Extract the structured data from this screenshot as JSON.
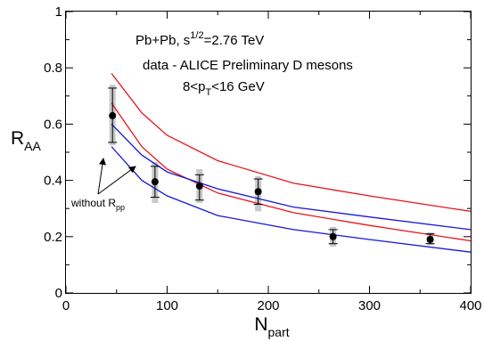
{
  "chart_data": {
    "type": "line",
    "title": "",
    "xlabel": {
      "main": "N",
      "sub": "part"
    },
    "ylabel": {
      "main": "R",
      "sub": "AA"
    },
    "xlim": [
      0,
      400
    ],
    "ylim": [
      0,
      1
    ],
    "x_ticks": [
      0,
      100,
      200,
      300,
      400
    ],
    "y_ticks": [
      0,
      0.2,
      0.4,
      0.6,
      0.8,
      1
    ],
    "x_tick_labels": [
      "0",
      "100",
      "200",
      "300",
      "400"
    ],
    "y_tick_labels": [
      "0",
      "0.2",
      "0.4",
      "0.6",
      "0.8",
      "1"
    ],
    "grid": false,
    "annotations": {
      "line1": {
        "pre": "Pb+Pb, s",
        "sup": "1/2",
        "post": "=2.76 TeV"
      },
      "line2": "data - ALICE Preliminary D mesons",
      "line3": {
        "pre": "8<p",
        "sub": "T",
        "post": "<16 GeV"
      },
      "arrow_label": {
        "pre": "without R",
        "sub": "pp"
      }
    },
    "series": [
      {
        "color": "#e8141b",
        "x": [
          45,
          75,
          100,
          150,
          225,
          300,
          400
        ],
        "y": [
          0.78,
          0.64,
          0.56,
          0.47,
          0.39,
          0.345,
          0.29
        ]
      },
      {
        "color": "#e8141b",
        "x": [
          45,
          75,
          100,
          150,
          225,
          300,
          400
        ],
        "y": [
          0.675,
          0.52,
          0.44,
          0.355,
          0.285,
          0.24,
          0.185
        ]
      },
      {
        "color": "#1818d8",
        "x": [
          45,
          75,
          100,
          150,
          225,
          300,
          400
        ],
        "y": [
          0.6,
          0.49,
          0.43,
          0.37,
          0.305,
          0.27,
          0.225
        ]
      },
      {
        "color": "#1818d8",
        "x": [
          45,
          75,
          100,
          150,
          225,
          300,
          400
        ],
        "y": [
          0.52,
          0.4,
          0.345,
          0.275,
          0.225,
          0.19,
          0.145
        ]
      }
    ],
    "data_points": [
      {
        "x": 46,
        "y": 0.63,
        "stat": [
          0.535,
          0.728
        ],
        "sys": [
          0.525,
          0.74
        ]
      },
      {
        "x": 88,
        "y": 0.395,
        "stat": [
          0.34,
          0.45
        ],
        "sys": [
          0.32,
          0.465
        ]
      },
      {
        "x": 132,
        "y": 0.38,
        "stat": [
          0.33,
          0.42
        ],
        "sys": [
          0.32,
          0.44
        ]
      },
      {
        "x": 190,
        "y": 0.36,
        "stat": [
          0.315,
          0.405
        ],
        "sys": [
          0.29,
          0.415
        ]
      },
      {
        "x": 264,
        "y": 0.2,
        "stat": [
          0.175,
          0.225
        ],
        "sys": [
          0.165,
          0.235
        ]
      },
      {
        "x": 360,
        "y": 0.19,
        "stat": [
          0.175,
          0.21
        ],
        "sys": [
          0.17,
          0.215
        ]
      }
    ]
  }
}
